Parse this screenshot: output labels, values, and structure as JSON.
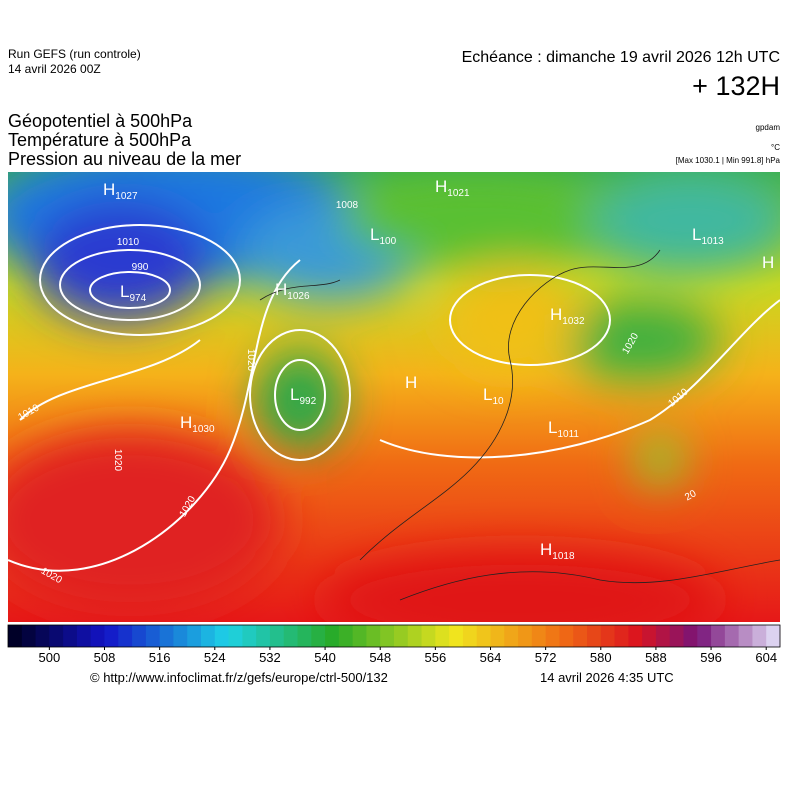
{
  "header": {
    "run": "Run GEFS (run controle)",
    "run_date": "14 avril 2026 00Z",
    "echeance": "Echéance : dimanche 19 avril 2026 12h UTC",
    "lead": "+ 132H",
    "fields": [
      "Géopotentiel à 500hPa",
      "Température à 500hPa",
      "Pression au niveau de la mer"
    ],
    "unit_geopotential": "gpdam",
    "unit_temperature": "°C",
    "range": "[Max 1030.1 | Min 991.8] hPa"
  },
  "map": {
    "centers": [
      {
        "letter": "H",
        "value": "1027"
      },
      {
        "letter": "L",
        "value": "974"
      },
      {
        "letter": "H",
        "value": "1030"
      },
      {
        "letter": "L",
        "value": "992"
      },
      {
        "letter": "H",
        "value": "1026"
      },
      {
        "letter": "L",
        "value": "100"
      },
      {
        "letter": "H",
        "value": "1021"
      },
      {
        "letter": "L",
        "value": "1013"
      },
      {
        "letter": "H",
        "value": "1032"
      },
      {
        "letter": "H",
        "value": "1018"
      },
      {
        "letter": "L",
        "value": "1011"
      },
      {
        "letter": "H"
      },
      {
        "letter": "H"
      },
      {
        "letter": "L",
        "value": "10"
      }
    ],
    "contour_labels": [
      "1008",
      "1010",
      "990",
      "1020",
      "1020",
      "1010",
      "1020",
      "1020",
      "1020",
      "1010",
      "20"
    ]
  },
  "colorbar": {
    "lim": [
      494,
      606
    ],
    "ticks": [
      500,
      508,
      516,
      524,
      532,
      540,
      548,
      556,
      564,
      572,
      580,
      588,
      596,
      604
    ]
  },
  "footer": {
    "url": "© http://www.infoclimat.fr/z/gefs/europe/ctrl-500/132",
    "date": "14 avril 2026  4:35 UTC"
  }
}
